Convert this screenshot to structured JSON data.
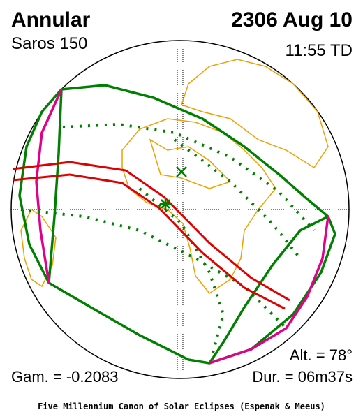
{
  "header": {
    "title": "Annular",
    "subtitle": "Saros 150",
    "date": "2306 Aug 10",
    "time": "11:55 TD"
  },
  "stats": {
    "altitude": "Alt. = 78°",
    "gamma": "Gam. = -0.2083",
    "duration": "Dur. = 06m37s"
  },
  "footer": "Five Millennium Canon of Solar Eclipses (Espenak & Meeus)"
}
